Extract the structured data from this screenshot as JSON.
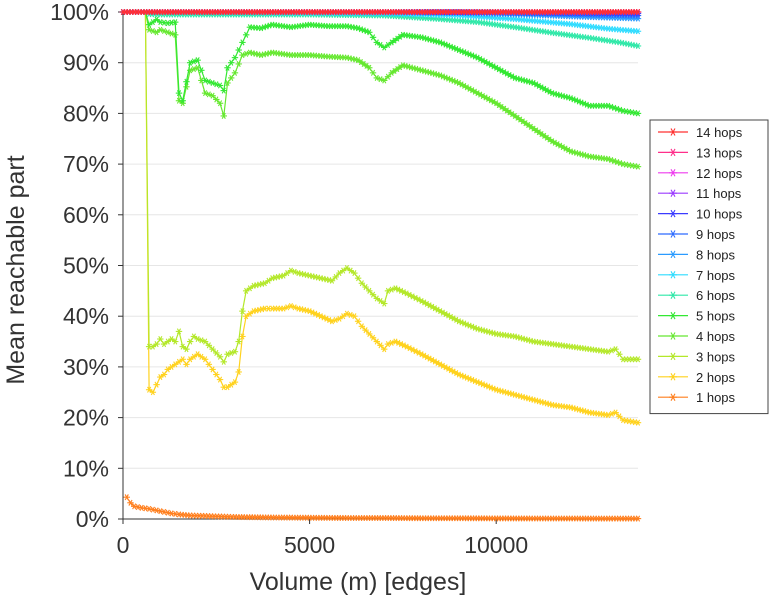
{
  "chart_data": {
    "type": "line",
    "title": "",
    "xlabel": "Volume (m) [edges]",
    "ylabel": "Mean reachable part",
    "xlim": [
      0,
      13800
    ],
    "ylim": [
      0,
      100
    ],
    "x_ticks": [
      0,
      5000,
      10000
    ],
    "x_tick_labels": [
      "0",
      "5000",
      "10000"
    ],
    "y_ticks": [
      0,
      10,
      20,
      30,
      40,
      50,
      60,
      70,
      80,
      90,
      100
    ],
    "y_tick_labels": [
      "0%",
      "10%",
      "20%",
      "30%",
      "40%",
      "50%",
      "60%",
      "70%",
      "80%",
      "90%",
      "100%"
    ],
    "grid": true,
    "legend_position": "right",
    "marker": "asterisk",
    "series": [
      {
        "name": "14 hops",
        "color": "#ff3030",
        "x": [
          0,
          600,
          3000,
          7000,
          13800
        ],
        "values": [
          100,
          100,
          100,
          100,
          100
        ]
      },
      {
        "name": "13 hops",
        "color": "#ff2f8a",
        "x": [
          0,
          600,
          3000,
          7000,
          13800
        ],
        "values": [
          100,
          100,
          100,
          100,
          100
        ]
      },
      {
        "name": "12 hops",
        "color": "#ee3bee",
        "x": [
          0,
          600,
          3000,
          7000,
          13800
        ],
        "values": [
          100,
          100,
          100,
          100,
          100
        ]
      },
      {
        "name": "11 hops",
        "color": "#9b3bff",
        "x": [
          0,
          600,
          3000,
          7000,
          13800
        ],
        "values": [
          100,
          100,
          100,
          100,
          100
        ]
      },
      {
        "name": "10 hops",
        "color": "#3b3bff",
        "x": [
          0,
          600,
          3000,
          7000,
          10000,
          13800
        ],
        "values": [
          100,
          100,
          100,
          100,
          99.9,
          99.7
        ]
      },
      {
        "name": "9 hops",
        "color": "#2d6bff",
        "x": [
          0,
          600,
          3000,
          7000,
          10000,
          12000,
          13800
        ],
        "values": [
          100,
          100,
          100,
          100,
          99.9,
          99.6,
          99.3
        ]
      },
      {
        "name": "8 hops",
        "color": "#2b9bff",
        "x": [
          0,
          600,
          3000,
          7000,
          9000,
          11000,
          12500,
          13800
        ],
        "values": [
          100,
          100,
          100,
          99.9,
          99.8,
          99.4,
          99.0,
          98.7
        ]
      },
      {
        "name": "7 hops",
        "color": "#2fdcff",
        "x": [
          0,
          600,
          3000,
          7000,
          9000,
          10500,
          12000,
          13000,
          13800
        ],
        "values": [
          100,
          100,
          99.9,
          99.7,
          99.3,
          98.6,
          97.6,
          96.7,
          96.2
        ]
      },
      {
        "name": "6 hops",
        "color": "#2fe8a8",
        "x": [
          0,
          600,
          700,
          1000,
          2000,
          3000,
          5000,
          7000,
          8500,
          9500,
          10500,
          11500,
          12500,
          13300,
          13800
        ],
        "values": [
          100,
          100,
          99.6,
          99.5,
          99.5,
          99.5,
          99.5,
          99.3,
          98.6,
          98.0,
          97.0,
          95.9,
          94.9,
          94.0,
          93.3
        ]
      },
      {
        "name": "5 hops",
        "color": "#33e833",
        "x": [
          0,
          600,
          700,
          900,
          1000,
          1200,
          1400,
          1500,
          1600,
          1800,
          2000,
          2200,
          2400,
          2600,
          2700,
          2800,
          3000,
          3200,
          3400,
          3700,
          4000,
          4500,
          5000,
          5500,
          6000,
          6300,
          6600,
          6800,
          7000,
          7200,
          7500,
          8000,
          8500,
          9000,
          9500,
          10000,
          10500,
          11000,
          11500,
          12000,
          12500,
          13000,
          13400,
          13800
        ],
        "values": [
          100,
          100,
          97.5,
          98.5,
          98.0,
          97.8,
          98.0,
          84.0,
          82.5,
          90.0,
          90.5,
          86.5,
          86.0,
          85.5,
          84.5,
          89.0,
          91.0,
          94.0,
          97.0,
          96.8,
          97.5,
          97.0,
          97.5,
          97.2,
          97.2,
          96.8,
          96.0,
          94.0,
          93.0,
          94.0,
          95.5,
          95.0,
          94.0,
          92.5,
          91.0,
          89.0,
          87.0,
          86.0,
          84.0,
          83.0,
          81.5,
          81.5,
          80.5,
          80.0
        ]
      },
      {
        "name": "4 hops",
        "color": "#66e830",
        "x": [
          0,
          600,
          700,
          900,
          1000,
          1200,
          1400,
          1500,
          1600,
          1800,
          2000,
          2200,
          2400,
          2600,
          2700,
          2800,
          3000,
          3200,
          3400,
          3700,
          4000,
          4500,
          5000,
          5500,
          6000,
          6300,
          6600,
          6800,
          7000,
          7200,
          7500,
          8000,
          8500,
          9000,
          9500,
          10000,
          10500,
          11000,
          11500,
          12000,
          12500,
          13000,
          13400,
          13800
        ],
        "values": [
          100,
          100,
          96.5,
          96.0,
          96.5,
          96.0,
          95.5,
          82.5,
          82.0,
          88.5,
          89.0,
          84.0,
          83.5,
          82.0,
          79.5,
          86.0,
          88.0,
          91.5,
          92.0,
          91.5,
          92.0,
          91.5,
          91.5,
          91.2,
          91.0,
          90.5,
          89.0,
          87.0,
          86.5,
          88.0,
          89.5,
          88.5,
          87.5,
          86.0,
          84.0,
          82.0,
          79.5,
          77.0,
          74.5,
          72.5,
          71.5,
          71.0,
          70.0,
          69.5
        ]
      },
      {
        "name": "3 hops",
        "color": "#b4e82a",
        "x": [
          0,
          600,
          700,
          800,
          900,
          1000,
          1100,
          1200,
          1300,
          1400,
          1500,
          1600,
          1700,
          1800,
          1900,
          2000,
          2200,
          2400,
          2600,
          2700,
          2800,
          3000,
          3100,
          3200,
          3300,
          3500,
          3800,
          4000,
          4300,
          4500,
          4700,
          5000,
          5300,
          5600,
          5800,
          6000,
          6200,
          6400,
          6600,
          6800,
          7000,
          7100,
          7300,
          7600,
          8000,
          8500,
          9000,
          9500,
          10000,
          10500,
          11000,
          11500,
          12000,
          12500,
          13000,
          13200,
          13400,
          13800
        ],
        "values": [
          100,
          100,
          34.0,
          34.0,
          34.5,
          35.5,
          34.5,
          35.0,
          35.5,
          35.0,
          37.0,
          34.0,
          33.5,
          35.0,
          36.0,
          35.5,
          35.0,
          33.5,
          32.0,
          31.0,
          32.5,
          33.0,
          35.0,
          41.0,
          45.0,
          46.0,
          46.5,
          47.5,
          48.0,
          49.0,
          48.5,
          48.0,
          47.5,
          47.0,
          48.5,
          49.5,
          48.5,
          46.5,
          45.0,
          43.5,
          42.5,
          45.0,
          45.5,
          44.5,
          43.0,
          41.0,
          39.0,
          37.5,
          36.5,
          36.0,
          35.0,
          34.5,
          34.0,
          33.5,
          33.0,
          33.5,
          31.5,
          31.5
        ]
      },
      {
        "name": "2 hops",
        "color": "#ffd21e",
        "x": [
          0,
          600,
          700,
          800,
          900,
          1000,
          1100,
          1200,
          1300,
          1400,
          1500,
          1600,
          1700,
          1800,
          1900,
          2000,
          2200,
          2400,
          2600,
          2700,
          2800,
          3000,
          3100,
          3200,
          3300,
          3500,
          3800,
          4000,
          4300,
          4500,
          4700,
          5000,
          5300,
          5600,
          5800,
          6000,
          6200,
          6400,
          6600,
          6800,
          7000,
          7100,
          7300,
          7600,
          8000,
          8500,
          9000,
          9500,
          10000,
          10500,
          11000,
          11500,
          12000,
          12500,
          13000,
          13200,
          13400,
          13800
        ],
        "values": [
          100,
          100,
          25.5,
          25.0,
          26.5,
          28.0,
          28.5,
          29.5,
          30.0,
          30.5,
          31.0,
          31.5,
          30.5,
          31.5,
          32.0,
          32.5,
          31.5,
          29.5,
          27.5,
          26.0,
          26.0,
          27.0,
          29.0,
          36.0,
          40.0,
          41.0,
          41.5,
          41.5,
          41.5,
          42.0,
          41.5,
          41.0,
          40.0,
          39.0,
          39.5,
          40.5,
          40.0,
          38.0,
          36.5,
          35.0,
          33.5,
          34.5,
          35.0,
          34.0,
          32.5,
          30.5,
          28.5,
          27.0,
          25.5,
          24.5,
          23.5,
          22.5,
          22.0,
          21.0,
          20.5,
          21.0,
          19.5,
          19.0
        ]
      },
      {
        "name": "1 hops",
        "color": "#ff7f1e",
        "x": [
          100,
          200,
          300,
          500,
          700,
          900,
          1100,
          1300,
          1500,
          1800,
          2200,
          2600,
          3000,
          3500,
          4000,
          5000,
          6000,
          7000,
          8000,
          9000,
          10000,
          11000,
          12000,
          13000,
          13800
        ],
        "values": [
          4.3,
          3.2,
          2.5,
          2.2,
          2.0,
          1.7,
          1.4,
          1.1,
          0.9,
          0.7,
          0.6,
          0.5,
          0.4,
          0.35,
          0.3,
          0.25,
          0.2,
          0.2,
          0.15,
          0.15,
          0.12,
          0.1,
          0.1,
          0.08,
          0.08
        ]
      }
    ]
  }
}
